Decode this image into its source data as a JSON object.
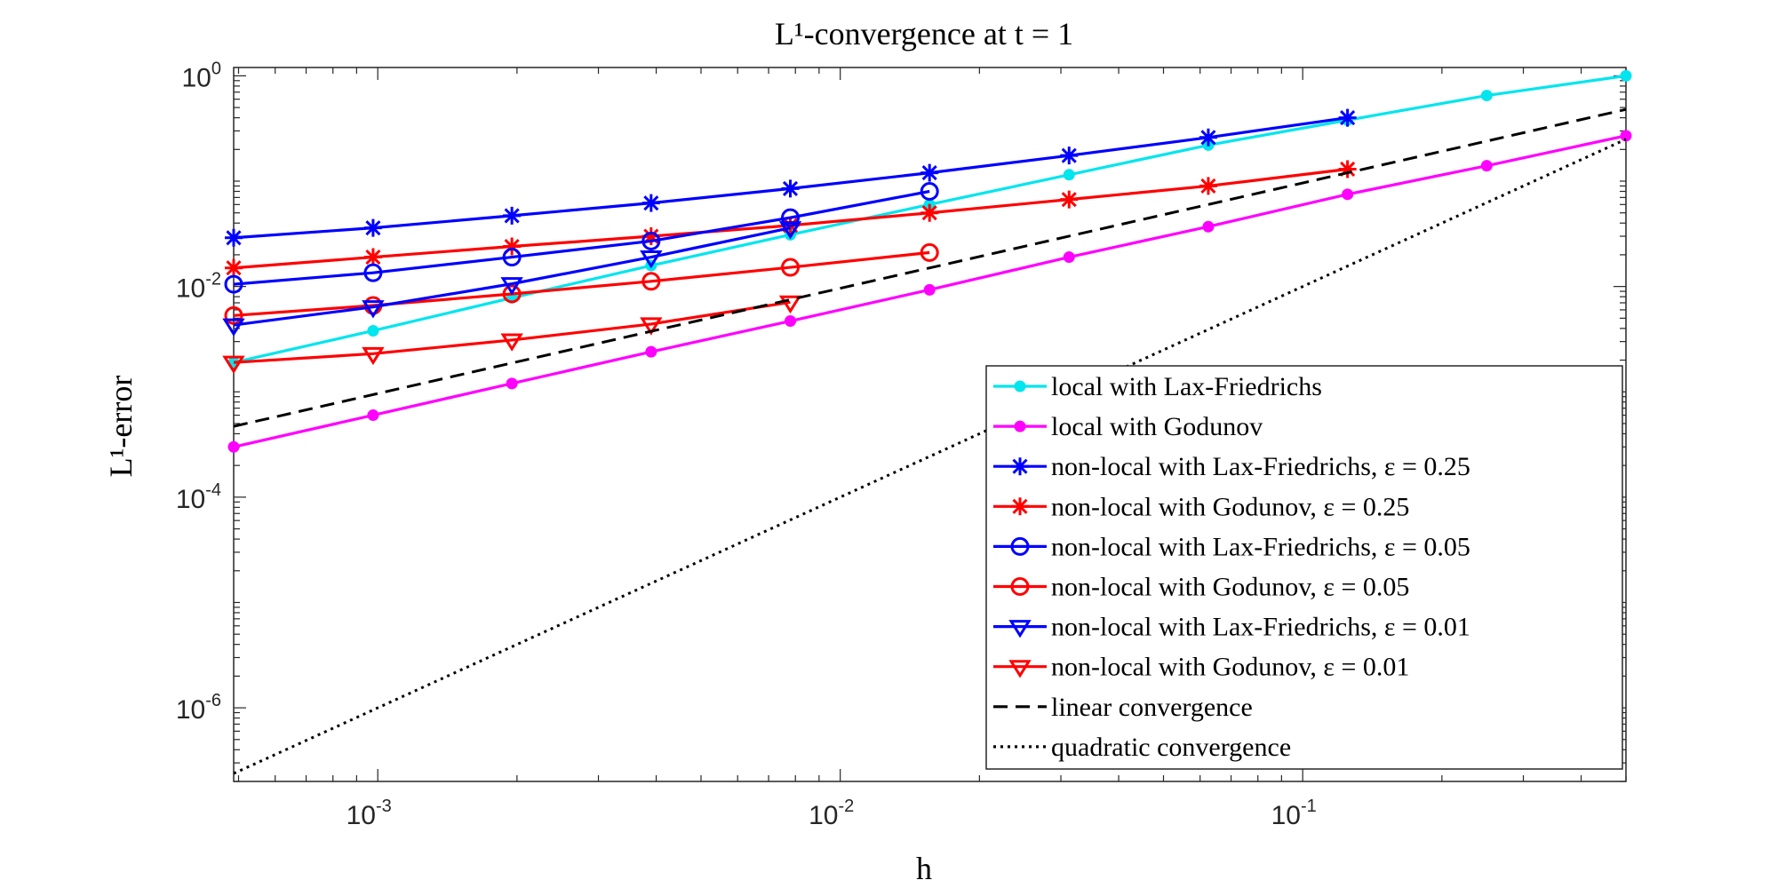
{
  "chart_data": {
    "type": "line",
    "title": "L¹-convergence at t = 1",
    "xlabel": "h",
    "ylabel": "L¹-error",
    "x_scale": "log",
    "y_scale": "log",
    "xlim": [
      0.000488,
      0.5
    ],
    "ylim": [
      2e-07,
      1.2
    ],
    "x_ticks": [
      {
        "value": 0.001,
        "base": "10",
        "exp": "-3"
      },
      {
        "value": 0.01,
        "base": "10",
        "exp": "-2"
      },
      {
        "value": 0.1,
        "base": "10",
        "exp": "-1"
      }
    ],
    "y_ticks": [
      {
        "value": 1,
        "base": "10",
        "exp": "0"
      },
      {
        "value": 0.01,
        "base": "10",
        "exp": "-2"
      },
      {
        "value": 0.0001,
        "base": "10",
        "exp": "-4"
      },
      {
        "value": 1e-06,
        "base": "10",
        "exp": "-6"
      }
    ],
    "grid": false,
    "legend_position": "bottom-right",
    "series": [
      {
        "name": "local with Lax-Friedrichs",
        "color": "#00e5ee",
        "marker": "dot",
        "dash": "solid",
        "x": [
          0.000488,
          0.000977,
          0.00195,
          0.0039,
          0.0078,
          0.0156,
          0.03125,
          0.0625,
          0.125,
          0.25,
          0.5
        ],
        "y": [
          0.0019,
          0.0038,
          0.0078,
          0.0158,
          0.031,
          0.06,
          0.115,
          0.22,
          0.38,
          0.65,
          1.0
        ]
      },
      {
        "name": "local with Godunov",
        "color": "#ff00ff",
        "marker": "dot",
        "dash": "solid",
        "x": [
          0.000488,
          0.000977,
          0.00195,
          0.0039,
          0.0078,
          0.0156,
          0.03125,
          0.0625,
          0.125,
          0.25,
          0.5
        ],
        "y": [
          0.0003,
          0.0006,
          0.0012,
          0.0024,
          0.0047,
          0.0093,
          0.019,
          0.037,
          0.075,
          0.14,
          0.27
        ]
      },
      {
        "name": "non-local with Lax-Friedrichs, ε = 0.25",
        "color": "#0000ff",
        "marker": "asterisk",
        "dash": "solid",
        "x": [
          0.000488,
          0.000977,
          0.00195,
          0.0039,
          0.0078,
          0.0156,
          0.03125,
          0.0625,
          0.125
        ],
        "y": [
          0.029,
          0.036,
          0.047,
          0.062,
          0.085,
          0.12,
          0.175,
          0.26,
          0.4
        ]
      },
      {
        "name": "non-local with Godunov, ε = 0.25",
        "color": "#ff0000",
        "marker": "asterisk",
        "dash": "solid",
        "x": [
          0.000488,
          0.000977,
          0.00195,
          0.0039,
          0.0078,
          0.0156,
          0.03125,
          0.0625,
          0.125
        ],
        "y": [
          0.015,
          0.019,
          0.024,
          0.03,
          0.038,
          0.05,
          0.067,
          0.09,
          0.13
        ]
      },
      {
        "name": "non-local with Lax-Friedrichs, ε = 0.05",
        "color": "#0000ff",
        "marker": "circle",
        "dash": "solid",
        "x": [
          0.000488,
          0.000977,
          0.00195,
          0.0039,
          0.0078,
          0.0156
        ],
        "y": [
          0.0105,
          0.0135,
          0.019,
          0.027,
          0.045,
          0.08
        ]
      },
      {
        "name": "non-local with Godunov, ε = 0.05",
        "color": "#ff0000",
        "marker": "circle",
        "dash": "solid",
        "x": [
          0.000488,
          0.000977,
          0.00195,
          0.0039,
          0.0078,
          0.0156
        ],
        "y": [
          0.0053,
          0.0066,
          0.0085,
          0.0112,
          0.0152,
          0.021
        ]
      },
      {
        "name": "non-local with Lax-Friedrichs, ε = 0.01",
        "color": "#0000ff",
        "marker": "triangle-down",
        "dash": "solid",
        "x": [
          0.000488,
          0.000977,
          0.00195,
          0.0039,
          0.0078
        ],
        "y": [
          0.0043,
          0.0064,
          0.0106,
          0.019,
          0.036
        ]
      },
      {
        "name": "non-local with Godunov, ε = 0.01",
        "color": "#ff0000",
        "marker": "triangle-down",
        "dash": "solid",
        "x": [
          0.000488,
          0.000977,
          0.00195,
          0.0039,
          0.0078
        ],
        "y": [
          0.0019,
          0.0023,
          0.0031,
          0.0044,
          0.0071
        ]
      },
      {
        "name": "linear convergence",
        "color": "#000000",
        "marker": "none",
        "dash": "dashed",
        "x": [
          0.000488,
          0.5
        ],
        "y": [
          0.00047,
          0.48
        ]
      },
      {
        "name": "quadratic convergence",
        "color": "#000000",
        "marker": "none",
        "dash": "dotted",
        "x": [
          0.000488,
          0.5
        ],
        "y": [
          2.38e-07,
          0.25
        ]
      }
    ]
  }
}
